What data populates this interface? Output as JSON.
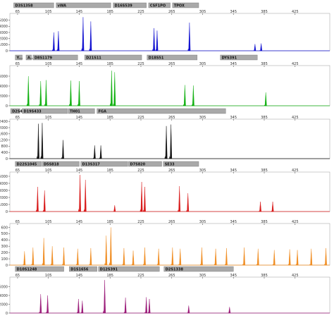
{
  "chart_data": [
    {
      "type": "line",
      "color": "#1010d0",
      "x_ticks": [
        65,
        105,
        145,
        185,
        225,
        265,
        305,
        345,
        385,
        425
      ],
      "ylim": [
        0,
        6000
      ],
      "y_ticks": [
        0,
        1000,
        2000,
        3000,
        4000,
        5000
      ],
      "markers": [
        "D3S1358",
        "vWA",
        "D16S539",
        "CSF1PO",
        "TPOX"
      ],
      "peaks": [
        [
          112,
          3000
        ],
        [
          118,
          3200
        ],
        [
          150,
          5500
        ],
        [
          160,
          4800
        ],
        [
          242,
          3700
        ],
        [
          246,
          3300
        ],
        [
          288,
          4600
        ],
        [
          373,
          1100
        ],
        [
          381,
          1200
        ]
      ]
    },
    {
      "type": "line",
      "color": "#10b010",
      "x_ticks": [
        65,
        105,
        145,
        185,
        225,
        265,
        305,
        345,
        385,
        425
      ],
      "ylim": [
        0,
        8000
      ],
      "y_ticks": [
        0,
        2000,
        4000,
        6000
      ],
      "markers": [
        "Y...",
        "A...",
        "D8S1179",
        "D21S11",
        "D18S51",
        "DYS391"
      ],
      "peaks": [
        [
          79,
          6000
        ],
        [
          95,
          5000
        ],
        [
          102,
          5200
        ],
        [
          134,
          5100
        ],
        [
          145,
          5000
        ],
        [
          187,
          7100
        ],
        [
          191,
          6800
        ],
        [
          282,
          4200
        ],
        [
          293,
          4100
        ],
        [
          387,
          2700
        ]
      ]
    },
    {
      "type": "line",
      "color": "#111111",
      "x_ticks": [
        65,
        105,
        145,
        185,
        225,
        265,
        305,
        345,
        385,
        425
      ],
      "ylim": [
        0,
        2500
      ],
      "y_ticks": [
        0,
        400,
        800,
        1200,
        1600,
        2000,
        2400
      ],
      "markers": [
        "D2S441",
        "D19S433",
        "TH01",
        "FGA"
      ],
      "peaks": [
        [
          92,
          2250
        ],
        [
          97,
          2300
        ],
        [
          124,
          1200
        ],
        [
          165,
          850
        ],
        [
          173,
          850
        ],
        [
          258,
          2100
        ],
        [
          264,
          2200
        ]
      ]
    },
    {
      "type": "line",
      "color": "#d81818",
      "x_ticks": [
        65,
        105,
        145,
        185,
        225,
        265,
        305,
        345,
        385,
        425
      ],
      "ylim": [
        0,
        5500
      ],
      "y_ticks": [
        0,
        1000,
        2000,
        3000,
        4000,
        5000
      ],
      "markers": [
        "D22S1045",
        "D5S818",
        "D13S317",
        "D7S820",
        "SE33"
      ],
      "peaks": [
        [
          91,
          3500
        ],
        [
          100,
          3000
        ],
        [
          146,
          5200
        ],
        [
          153,
          4500
        ],
        [
          191,
          900
        ],
        [
          226,
          4200
        ],
        [
          230,
          3500
        ],
        [
          275,
          3600
        ],
        [
          286,
          2600
        ],
        [
          380,
          1400
        ],
        [
          396,
          1400
        ]
      ]
    },
    {
      "type": "line",
      "color": "#f08c20",
      "x_ticks": [
        65,
        105,
        145,
        185,
        225,
        265,
        305,
        345,
        385,
        425
      ],
      "ylim": [
        0,
        650
      ],
      "y_ticks": [
        0,
        100,
        200,
        300,
        400,
        500,
        600
      ],
      "markers": [],
      "peaks": [
        [
          74,
          220
        ],
        [
          85,
          280
        ],
        [
          99,
          430
        ],
        [
          110,
          300
        ],
        [
          125,
          280
        ],
        [
          143,
          260
        ],
        [
          160,
          270
        ],
        [
          180,
          470
        ],
        [
          186,
          600
        ],
        [
          203,
          270
        ],
        [
          215,
          230
        ],
        [
          230,
          280
        ],
        [
          248,
          260
        ],
        [
          266,
          280
        ],
        [
          276,
          260
        ],
        [
          304,
          280
        ],
        [
          322,
          260
        ],
        [
          336,
          270
        ],
        [
          359,
          280
        ],
        [
          377,
          260
        ],
        [
          398,
          240
        ],
        [
          418,
          250
        ],
        [
          428,
          240
        ],
        [
          446,
          260
        ],
        [
          465,
          270
        ]
      ]
    },
    {
      "type": "line",
      "color": "#9a1a78",
      "x_ticks": [
        65,
        105,
        145,
        185,
        225,
        265,
        305,
        345,
        385,
        425
      ],
      "ylim": [
        0,
        8000
      ],
      "y_ticks": [
        0,
        2000,
        4000,
        6000
      ],
      "markers": [
        "D10S1248",
        "D1S1656",
        "D12S391",
        "D2S1338"
      ],
      "peaks": [
        [
          95,
          4300
        ],
        [
          104,
          4000
        ],
        [
          144,
          3200
        ],
        [
          149,
          2800
        ],
        [
          178,
          7500
        ],
        [
          205,
          3500
        ],
        [
          232,
          3600
        ],
        [
          236,
          3200
        ],
        [
          287,
          1700
        ],
        [
          340,
          1400
        ]
      ]
    }
  ]
}
